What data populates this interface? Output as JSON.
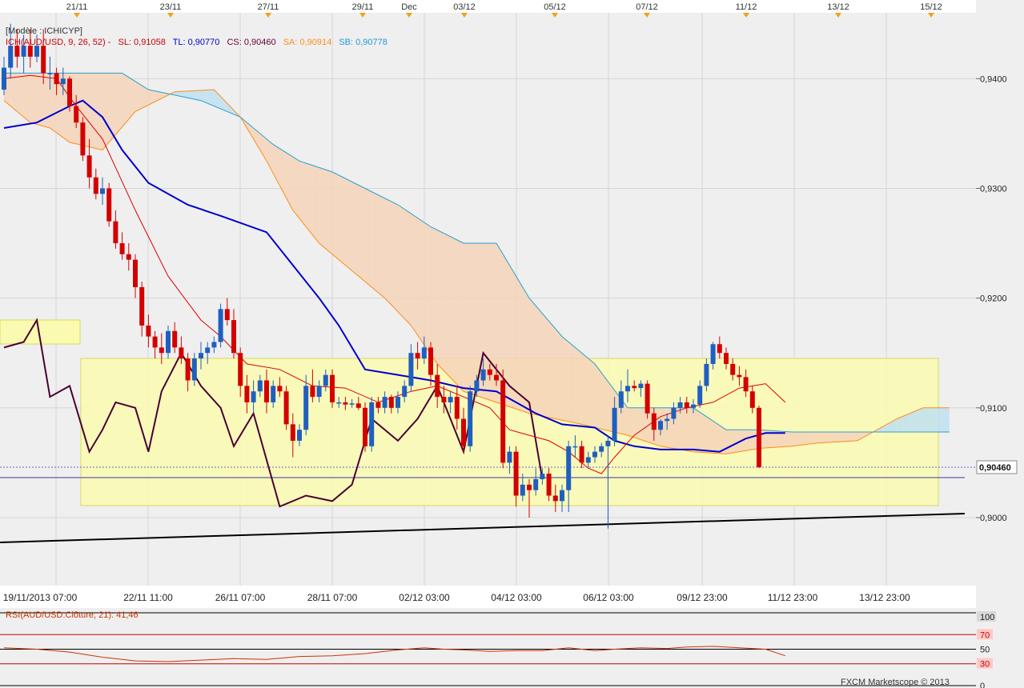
{
  "header": {
    "model_text": "[Modèle : ICHICYP]",
    "legend": [
      {
        "text": "ICH(AUD/USD, 9, 26, 52) -",
        "color": "#cc0000"
      },
      {
        "text": "SL: 0,91058",
        "color": "#cc0000"
      },
      {
        "text": "TL: 0,90770",
        "color": "#0000cc"
      },
      {
        "text": "CS: 0,90460",
        "color": "#660033"
      },
      {
        "text": "SA: 0,90914",
        "color": "#ff8c1a"
      },
      {
        "text": "SB: 0,90778",
        "color": "#1e9bd7"
      }
    ]
  },
  "top_date_markers": [
    "21/11",
    "23/11",
    "27/11",
    "29/11",
    "Dec",
    "03/12",
    "05/12",
    "07/12",
    "11/12",
    "13/12",
    "15/12"
  ],
  "time_axis": [
    "19/11/2013 07:00",
    "22/11 11:00",
    "26/11 07:00",
    "28/11 07:00",
    "02/12 03:00",
    "04/12 03:00",
    "06/12 03:00",
    "09/12 23:00",
    "11/12 23:00",
    "13/12 23:00"
  ],
  "price_axis": [
    "0,9400",
    "0,9300",
    "0,9200",
    "0,9100",
    "0,9000"
  ],
  "current_price_label": "0,90460",
  "rsi": {
    "label": "RSI(AUD/USD.Clôture, 21): 41,46",
    "levels": [
      "100",
      "70",
      "50",
      "30",
      "0"
    ],
    "color": "#cc3300"
  },
  "footer": {
    "text": "FXCM Marketscope © 2013"
  },
  "colors": {
    "bull": "#1f5fbf",
    "bear": "#d40000",
    "tenkan": "#dd0000",
    "kijun": "#0000cc",
    "chikou": "#4a0033",
    "senkou_a": "#ff8c1a",
    "senkou_b": "#2ba0d0",
    "cloud_bull": "#f5d3b8",
    "cloud_bear": "#bfe0f0",
    "highlight": "#fafab0"
  },
  "chart_data": {
    "type": "candlestick",
    "instrument": "AUD/USD",
    "indicator": "ICH(AUD/USD, 9, 26, 52)",
    "y_range": [
      0.8938,
      0.946
    ],
    "candles": [
      [
        0.939,
        0.942,
        0.9385,
        0.941
      ],
      [
        0.941,
        0.945,
        0.94,
        0.943
      ],
      [
        0.943,
        0.9445,
        0.941,
        0.942
      ],
      [
        0.942,
        0.944,
        0.9405,
        0.943
      ],
      [
        0.943,
        0.9445,
        0.941,
        0.942
      ],
      [
        0.942,
        0.944,
        0.9415,
        0.943
      ],
      [
        0.943,
        0.9445,
        0.9395,
        0.9405
      ],
      [
        0.9405,
        0.942,
        0.939,
        0.9405
      ],
      [
        0.9405,
        0.941,
        0.9385,
        0.9395
      ],
      [
        0.9395,
        0.941,
        0.9385,
        0.94
      ],
      [
        0.94,
        0.9402,
        0.937,
        0.9375
      ],
      [
        0.9375,
        0.9385,
        0.9355,
        0.936
      ],
      [
        0.936,
        0.9365,
        0.9325,
        0.933
      ],
      [
        0.933,
        0.9345,
        0.93,
        0.931
      ],
      [
        0.931,
        0.9318,
        0.929,
        0.9295
      ],
      [
        0.9295,
        0.931,
        0.9285,
        0.93
      ],
      [
        0.93,
        0.9305,
        0.9265,
        0.927
      ],
      [
        0.927,
        0.928,
        0.9245,
        0.925
      ],
      [
        0.925,
        0.926,
        0.9235,
        0.924
      ],
      [
        0.924,
        0.925,
        0.9225,
        0.9235
      ],
      [
        0.9235,
        0.924,
        0.92,
        0.921
      ],
      [
        0.921,
        0.9215,
        0.9165,
        0.9175
      ],
      [
        0.9175,
        0.9185,
        0.9155,
        0.9165
      ],
      [
        0.9165,
        0.917,
        0.9145,
        0.9155
      ],
      [
        0.9155,
        0.9168,
        0.914,
        0.915
      ],
      [
        0.915,
        0.9175,
        0.9145,
        0.917
      ],
      [
        0.917,
        0.9178,
        0.915,
        0.9155
      ],
      [
        0.9155,
        0.9165,
        0.914,
        0.9145
      ],
      [
        0.9145,
        0.915,
        0.9115,
        0.9125
      ],
      [
        0.9125,
        0.915,
        0.912,
        0.9145
      ],
      [
        0.9145,
        0.916,
        0.9135,
        0.915
      ],
      [
        0.915,
        0.916,
        0.914,
        0.9155
      ],
      [
        0.9155,
        0.9165,
        0.915,
        0.916
      ],
      [
        0.916,
        0.9195,
        0.9155,
        0.919
      ],
      [
        0.919,
        0.92,
        0.9175,
        0.918
      ],
      [
        0.918,
        0.919,
        0.9145,
        0.915
      ],
      [
        0.915,
        0.9155,
        0.911,
        0.912
      ],
      [
        0.912,
        0.913,
        0.9095,
        0.9105
      ],
      [
        0.9105,
        0.9125,
        0.9095,
        0.9115
      ],
      [
        0.9115,
        0.913,
        0.911,
        0.9125
      ],
      [
        0.9125,
        0.9135,
        0.9095,
        0.9105
      ],
      [
        0.9105,
        0.9125,
        0.91,
        0.912
      ],
      [
        0.912,
        0.9128,
        0.911,
        0.9115
      ],
      [
        0.9115,
        0.912,
        0.908,
        0.9085
      ],
      [
        0.9085,
        0.9095,
        0.9055,
        0.907
      ],
      [
        0.907,
        0.9085,
        0.9065,
        0.908
      ],
      [
        0.908,
        0.913,
        0.9075,
        0.912
      ],
      [
        0.912,
        0.9135,
        0.9105,
        0.911
      ],
      [
        0.911,
        0.9125,
        0.9105,
        0.912
      ],
      [
        0.912,
        0.9135,
        0.9115,
        0.913
      ],
      [
        0.913,
        0.9135,
        0.91,
        0.9105
      ],
      [
        0.9105,
        0.911,
        0.91,
        0.9105
      ],
      [
        0.9105,
        0.911,
        0.9098,
        0.9103
      ],
      [
        0.9103,
        0.9108,
        0.91,
        0.9104
      ],
      [
        0.9104,
        0.911,
        0.9098,
        0.91
      ],
      [
        0.91,
        0.9105,
        0.906,
        0.9065
      ],
      [
        0.9065,
        0.911,
        0.906,
        0.9105
      ],
      [
        0.9105,
        0.911,
        0.9095,
        0.91
      ],
      [
        0.91,
        0.9115,
        0.9095,
        0.911
      ],
      [
        0.911,
        0.9112,
        0.9095,
        0.91
      ],
      [
        0.91,
        0.9115,
        0.9095,
        0.911
      ],
      [
        0.911,
        0.9125,
        0.9105,
        0.912
      ],
      [
        0.912,
        0.9158,
        0.9115,
        0.915
      ],
      [
        0.915,
        0.916,
        0.9135,
        0.9145
      ],
      [
        0.9145,
        0.9165,
        0.914,
        0.9155
      ],
      [
        0.9155,
        0.916,
        0.912,
        0.913
      ],
      [
        0.913,
        0.914,
        0.91,
        0.911
      ],
      [
        0.911,
        0.912,
        0.9095,
        0.9105
      ],
      [
        0.9105,
        0.9115,
        0.9095,
        0.911
      ],
      [
        0.911,
        0.912,
        0.908,
        0.909
      ],
      [
        0.909,
        0.91,
        0.906,
        0.9065
      ],
      [
        0.9065,
        0.912,
        0.906,
        0.9115
      ],
      [
        0.9115,
        0.913,
        0.911,
        0.9125
      ],
      [
        0.9125,
        0.9145,
        0.912,
        0.9135
      ],
      [
        0.9135,
        0.914,
        0.9125,
        0.913
      ],
      [
        0.913,
        0.914,
        0.912,
        0.9125
      ],
      [
        0.9125,
        0.9135,
        0.9045,
        0.905
      ],
      [
        0.905,
        0.9065,
        0.904,
        0.906
      ],
      [
        0.906,
        0.9065,
        0.901,
        0.902
      ],
      [
        0.902,
        0.904,
        0.9015,
        0.903
      ],
      [
        0.903,
        0.9035,
        0.9,
        0.9025
      ],
      [
        0.9025,
        0.9045,
        0.902,
        0.9035
      ],
      [
        0.9035,
        0.9045,
        0.903,
        0.904
      ],
      [
        0.904,
        0.9045,
        0.9015,
        0.902
      ],
      [
        0.902,
        0.903,
        0.9005,
        0.9015
      ],
      [
        0.9015,
        0.903,
        0.9005,
        0.9025
      ],
      [
        0.9025,
        0.907,
        0.9005,
        0.9065
      ],
      [
        0.9065,
        0.9075,
        0.9055,
        0.9065
      ],
      [
        0.9065,
        0.907,
        0.9045,
        0.905
      ],
      [
        0.905,
        0.906,
        0.9045,
        0.9055
      ],
      [
        0.9055,
        0.9065,
        0.905,
        0.906
      ],
      [
        0.906,
        0.9068,
        0.9055,
        0.9065
      ],
      [
        0.9065,
        0.9075,
        0.899,
        0.907
      ],
      [
        0.907,
        0.911,
        0.9065,
        0.91
      ],
      [
        0.91,
        0.9125,
        0.9095,
        0.9115
      ],
      [
        0.9115,
        0.9135,
        0.9105,
        0.912
      ],
      [
        0.912,
        0.9125,
        0.9115,
        0.9118
      ],
      [
        0.9118,
        0.9125,
        0.911,
        0.9122
      ],
      [
        0.9122,
        0.9125,
        0.909,
        0.9095
      ],
      [
        0.9095,
        0.91,
        0.907,
        0.908
      ],
      [
        0.908,
        0.909,
        0.9075,
        0.9088
      ],
      [
        0.9088,
        0.9095,
        0.908,
        0.909
      ],
      [
        0.909,
        0.9105,
        0.9085,
        0.91
      ],
      [
        0.91,
        0.911,
        0.9095,
        0.9105
      ],
      [
        0.9105,
        0.911,
        0.9095,
        0.91
      ],
      [
        0.91,
        0.9108,
        0.9095,
        0.9103
      ],
      [
        0.9103,
        0.9125,
        0.91,
        0.912
      ],
      [
        0.912,
        0.9145,
        0.9115,
        0.914
      ],
      [
        0.914,
        0.916,
        0.9135,
        0.9158
      ],
      [
        0.9158,
        0.9165,
        0.9145,
        0.915
      ],
      [
        0.915,
        0.9155,
        0.9135,
        0.914
      ],
      [
        0.914,
        0.9145,
        0.9125,
        0.913
      ],
      [
        0.913,
        0.9138,
        0.912,
        0.9128
      ],
      [
        0.9128,
        0.9135,
        0.911,
        0.9115
      ],
      [
        0.9115,
        0.912,
        0.9095,
        0.91
      ],
      [
        0.91,
        0.9102,
        0.9045,
        0.9046
      ]
    ],
    "tenkan": [
      [
        0,
        0.94
      ],
      [
        4,
        0.9403
      ],
      [
        8,
        0.94
      ],
      [
        11,
        0.9375
      ],
      [
        15,
        0.9345
      ],
      [
        20,
        0.928
      ],
      [
        25,
        0.922
      ],
      [
        30,
        0.918
      ],
      [
        33,
        0.9165
      ],
      [
        37,
        0.914
      ],
      [
        42,
        0.9135
      ],
      [
        47,
        0.912
      ],
      [
        52,
        0.9118
      ],
      [
        57,
        0.9105
      ],
      [
        62,
        0.9115
      ],
      [
        66,
        0.912
      ],
      [
        70,
        0.911
      ],
      [
        74,
        0.91
      ],
      [
        77,
        0.908
      ],
      [
        80,
        0.9075
      ],
      [
        83,
        0.907
      ],
      [
        86,
        0.906
      ],
      [
        89,
        0.9045
      ],
      [
        91,
        0.904
      ],
      [
        93,
        0.9055
      ],
      [
        96,
        0.9075
      ],
      [
        100,
        0.9092
      ],
      [
        104,
        0.91
      ],
      [
        108,
        0.9105
      ],
      [
        112,
        0.9118
      ],
      [
        116,
        0.9122
      ],
      [
        119,
        0.9105
      ]
    ],
    "kijun": [
      [
        0,
        0.9355
      ],
      [
        5,
        0.936
      ],
      [
        10,
        0.9375
      ],
      [
        12,
        0.938
      ],
      [
        15,
        0.9365
      ],
      [
        18,
        0.9335
      ],
      [
        22,
        0.9305
      ],
      [
        28,
        0.9285
      ],
      [
        33,
        0.9275
      ],
      [
        40,
        0.926
      ],
      [
        44,
        0.923
      ],
      [
        48,
        0.92
      ],
      [
        51,
        0.9175
      ],
      [
        55,
        0.9135
      ],
      [
        60,
        0.913
      ],
      [
        65,
        0.9125
      ],
      [
        70,
        0.9118
      ],
      [
        75,
        0.9115
      ],
      [
        78,
        0.9105
      ],
      [
        81,
        0.9095
      ],
      [
        85,
        0.9085
      ],
      [
        90,
        0.9082
      ],
      [
        93,
        0.907
      ],
      [
        96,
        0.9065
      ],
      [
        100,
        0.9062
      ],
      [
        105,
        0.9062
      ],
      [
        109,
        0.906
      ],
      [
        113,
        0.9072
      ],
      [
        116,
        0.9077
      ],
      [
        119,
        0.9077
      ]
    ],
    "chikou": [
      [
        0,
        0.9155
      ],
      [
        3,
        0.916
      ],
      [
        5,
        0.918
      ],
      [
        7,
        0.911
      ],
      [
        10,
        0.912
      ],
      [
        13,
        0.906
      ],
      [
        15,
        0.908
      ],
      [
        17,
        0.9105
      ],
      [
        20,
        0.91
      ],
      [
        22,
        0.906
      ],
      [
        24,
        0.9115
      ],
      [
        27,
        0.915
      ],
      [
        30,
        0.912
      ],
      [
        33,
        0.91
      ],
      [
        35,
        0.9065
      ],
      [
        38,
        0.9095
      ],
      [
        42,
        0.901
      ],
      [
        46,
        0.902
      ],
      [
        50,
        0.9015
      ],
      [
        53,
        0.903
      ],
      [
        56,
        0.909
      ],
      [
        60,
        0.907
      ],
      [
        63,
        0.909
      ],
      [
        66,
        0.912
      ],
      [
        70,
        0.906
      ],
      [
        73,
        0.915
      ],
      [
        77,
        0.912
      ],
      [
        80,
        0.9105
      ],
      [
        82,
        0.9035
      ]
    ],
    "senkou_a": [
      [
        0,
        0.938
      ],
      [
        4,
        0.936
      ],
      [
        7,
        0.9355
      ],
      [
        10,
        0.9342
      ],
      [
        15,
        0.9335
      ],
      [
        20,
        0.937
      ],
      [
        26,
        0.9388
      ],
      [
        32,
        0.939
      ],
      [
        36,
        0.9365
      ],
      [
        40,
        0.9325
      ],
      [
        44,
        0.928
      ],
      [
        48,
        0.925
      ],
      [
        52,
        0.923
      ],
      [
        58,
        0.92
      ],
      [
        62,
        0.9175
      ],
      [
        66,
        0.914
      ],
      [
        70,
        0.9115
      ],
      [
        75,
        0.9105
      ],
      [
        80,
        0.9095
      ],
      [
        84,
        0.909
      ],
      [
        88,
        0.9085
      ],
      [
        95,
        0.9075
      ],
      [
        100,
        0.9065
      ],
      [
        105,
        0.906
      ],
      [
        110,
        0.9058
      ],
      [
        115,
        0.9063
      ],
      [
        120,
        0.9065
      ],
      [
        124,
        0.9068
      ],
      [
        130,
        0.907
      ],
      [
        133,
        0.908
      ],
      [
        136,
        0.909
      ],
      [
        140,
        0.91
      ],
      [
        144,
        0.91
      ]
    ],
    "senkou_b": [
      [
        0,
        0.9405
      ],
      [
        4,
        0.9405
      ],
      [
        8,
        0.9405
      ],
      [
        12,
        0.9405
      ],
      [
        18,
        0.9405
      ],
      [
        22,
        0.939
      ],
      [
        26,
        0.9385
      ],
      [
        30,
        0.938
      ],
      [
        36,
        0.9365
      ],
      [
        41,
        0.934
      ],
      [
        45,
        0.9325
      ],
      [
        50,
        0.9315
      ],
      [
        55,
        0.93
      ],
      [
        60,
        0.9285
      ],
      [
        65,
        0.9265
      ],
      [
        70,
        0.925
      ],
      [
        75,
        0.925
      ],
      [
        80,
        0.92
      ],
      [
        85,
        0.9165
      ],
      [
        90,
        0.914
      ],
      [
        95,
        0.91
      ],
      [
        100,
        0.91
      ],
      [
        105,
        0.91
      ],
      [
        110,
        0.908
      ],
      [
        115,
        0.908
      ],
      [
        120,
        0.9078
      ],
      [
        125,
        0.9078
      ],
      [
        130,
        0.9078
      ],
      [
        136,
        0.9078
      ],
      [
        140,
        0.9078
      ],
      [
        144,
        0.9078
      ]
    ],
    "rsi_values": [
      [
        0,
        52
      ],
      [
        5,
        50
      ],
      [
        10,
        46
      ],
      [
        15,
        39
      ],
      [
        20,
        34
      ],
      [
        25,
        33
      ],
      [
        30,
        35
      ],
      [
        35,
        37
      ],
      [
        40,
        36
      ],
      [
        45,
        40
      ],
      [
        50,
        41
      ],
      [
        55,
        44
      ],
      [
        60,
        49
      ],
      [
        64,
        52
      ],
      [
        67,
        50
      ],
      [
        70,
        49
      ],
      [
        74,
        47
      ],
      [
        78,
        48
      ],
      [
        82,
        48
      ],
      [
        86,
        52
      ],
      [
        90,
        48
      ],
      [
        93,
        50
      ],
      [
        97,
        52
      ],
      [
        101,
        51
      ],
      [
        104,
        53
      ],
      [
        108,
        54
      ],
      [
        112,
        52
      ],
      [
        116,
        50
      ],
      [
        119,
        41
      ]
    ]
  }
}
